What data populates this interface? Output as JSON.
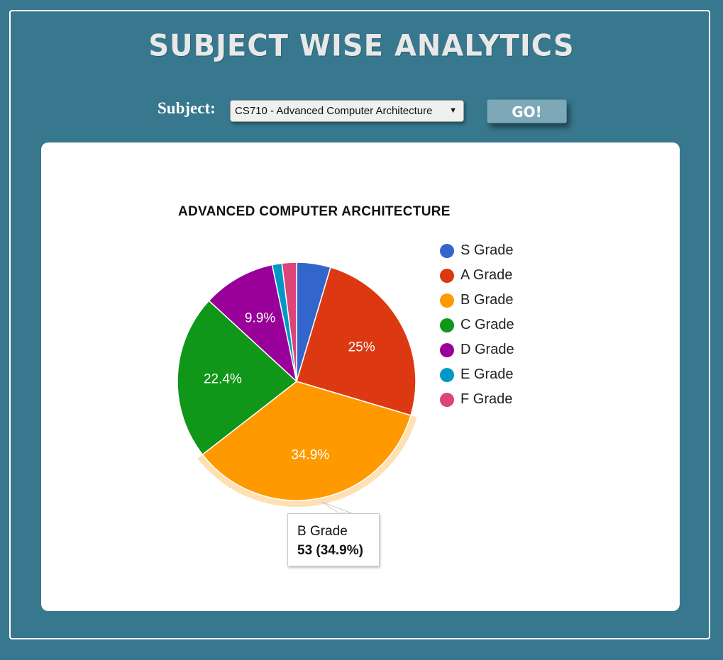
{
  "page": {
    "title": "Subject Wise Analytics"
  },
  "controls": {
    "subject_label": "Subject:",
    "subject_selected": "CS710 - Advanced Computer Architecture",
    "go_label": "GO!"
  },
  "chart_data": {
    "type": "pie",
    "title": "ADVANCED COMPUTER ARCHITECTURE",
    "categories": [
      "S Grade",
      "A Grade",
      "B Grade",
      "C Grade",
      "D Grade",
      "E Grade",
      "F Grade"
    ],
    "values": [
      7,
      38,
      53,
      34,
      15,
      2,
      3
    ],
    "slice_labels": [
      "",
      "25%",
      "34.9%",
      "22.4%",
      "9.9%",
      "",
      ""
    ],
    "colors": [
      "#3366cc",
      "#dc3912",
      "#ff9900",
      "#109618",
      "#990099",
      "#0099c6",
      "#dd4477"
    ],
    "legend_position": "right",
    "highlighted": "B Grade",
    "tooltip": {
      "name": "B Grade",
      "value": "53 (34.9%)"
    }
  }
}
